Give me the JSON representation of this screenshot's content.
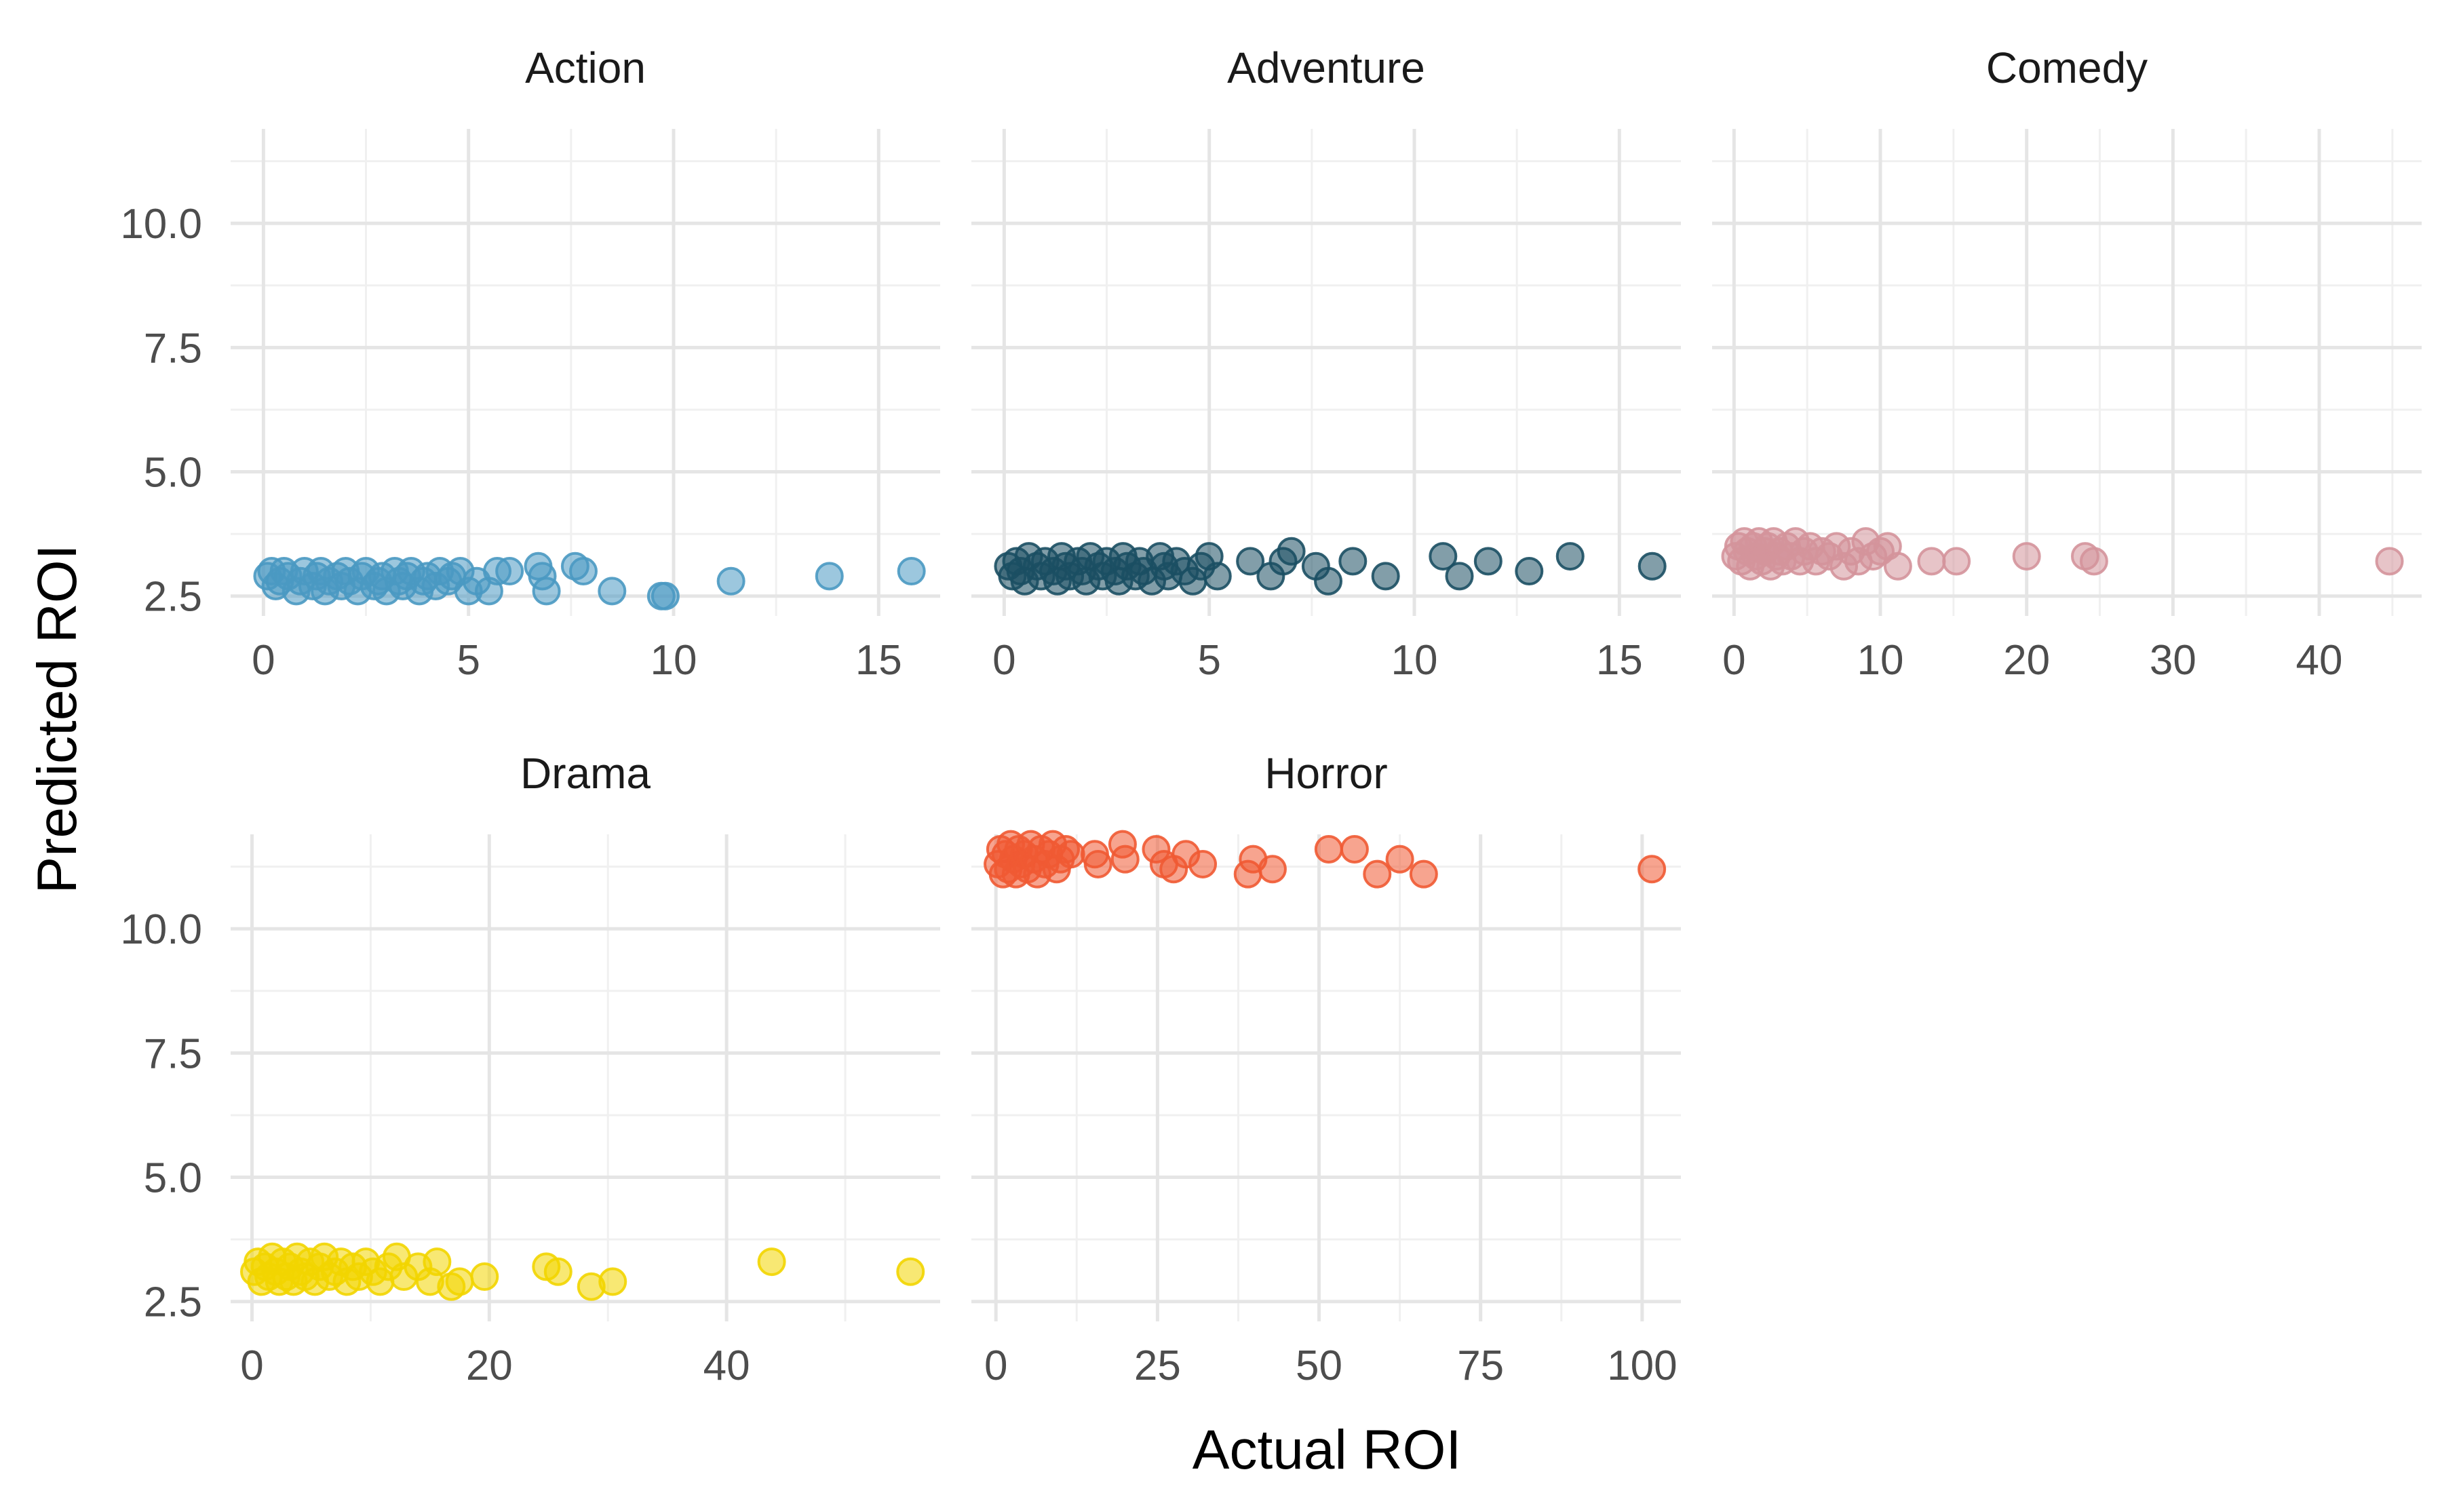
{
  "chart_data": {
    "type": "scatter",
    "xlabel": "Actual ROI",
    "ylabel": "Predicted ROI",
    "ylim": [
      2.1,
      11.9
    ],
    "y_ticks": [
      2.5,
      5.0,
      7.5,
      10.0
    ],
    "y_tick_labels": [
      "2.5",
      "5.0",
      "7.5",
      "10.0"
    ],
    "grid": true,
    "legend": "none",
    "point_opacity": 0.55,
    "panels": [
      {
        "title": "Action",
        "color": "#4A99C2",
        "xlim": [
          -0.8,
          16.5
        ],
        "x_ticks": [
          0,
          5,
          10,
          15
        ],
        "x_tick_labels": [
          "0",
          "5",
          "10",
          "15"
        ],
        "points": [
          [
            0.1,
            2.9
          ],
          [
            0.2,
            3.0
          ],
          [
            0.3,
            2.7
          ],
          [
            0.4,
            2.8
          ],
          [
            0.5,
            3.0
          ],
          [
            0.6,
            2.9
          ],
          [
            0.8,
            2.6
          ],
          [
            0.9,
            2.8
          ],
          [
            1.0,
            3.0
          ],
          [
            1.2,
            2.7
          ],
          [
            1.3,
            2.9
          ],
          [
            1.4,
            3.0
          ],
          [
            1.5,
            2.6
          ],
          [
            1.6,
            2.8
          ],
          [
            1.8,
            2.9
          ],
          [
            1.9,
            2.7
          ],
          [
            2.0,
            3.0
          ],
          [
            2.1,
            2.8
          ],
          [
            2.3,
            2.6
          ],
          [
            2.4,
            2.9
          ],
          [
            2.5,
            3.0
          ],
          [
            2.7,
            2.7
          ],
          [
            2.8,
            2.8
          ],
          [
            2.9,
            2.9
          ],
          [
            3.0,
            2.6
          ],
          [
            3.2,
            3.0
          ],
          [
            3.3,
            2.8
          ],
          [
            3.4,
            2.7
          ],
          [
            3.5,
            2.9
          ],
          [
            3.6,
            3.0
          ],
          [
            3.8,
            2.6
          ],
          [
            3.9,
            2.8
          ],
          [
            4.0,
            2.9
          ],
          [
            4.2,
            2.7
          ],
          [
            4.3,
            3.0
          ],
          [
            4.5,
            2.8
          ],
          [
            4.6,
            2.9
          ],
          [
            4.8,
            3.0
          ],
          [
            5.0,
            2.6
          ],
          [
            5.2,
            2.8
          ],
          [
            5.5,
            2.6
          ],
          [
            5.7,
            3.0
          ],
          [
            6.0,
            3.0
          ],
          [
            6.7,
            3.1
          ],
          [
            6.8,
            2.9
          ],
          [
            6.9,
            2.6
          ],
          [
            7.6,
            3.1
          ],
          [
            7.8,
            3.0
          ],
          [
            8.5,
            2.6
          ],
          [
            9.7,
            2.5
          ],
          [
            9.8,
            2.5
          ],
          [
            11.4,
            2.8
          ],
          [
            13.8,
            2.9
          ],
          [
            15.8,
            3.0
          ]
        ]
      },
      {
        "title": "Adventure",
        "color": "#1B4F63",
        "xlim": [
          -0.8,
          16.5
        ],
        "x_ticks": [
          0,
          5,
          10,
          15
        ],
        "x_tick_labels": [
          "0",
          "5",
          "10",
          "15"
        ],
        "points": [
          [
            0.1,
            3.1
          ],
          [
            0.2,
            2.9
          ],
          [
            0.3,
            3.2
          ],
          [
            0.4,
            3.0
          ],
          [
            0.5,
            2.8
          ],
          [
            0.6,
            3.3
          ],
          [
            0.8,
            3.1
          ],
          [
            0.9,
            2.9
          ],
          [
            1.0,
            3.2
          ],
          [
            1.2,
            3.0
          ],
          [
            1.3,
            2.8
          ],
          [
            1.4,
            3.3
          ],
          [
            1.5,
            3.1
          ],
          [
            1.6,
            2.9
          ],
          [
            1.8,
            3.2
          ],
          [
            1.9,
            3.0
          ],
          [
            2.0,
            2.8
          ],
          [
            2.1,
            3.3
          ],
          [
            2.3,
            3.1
          ],
          [
            2.4,
            2.9
          ],
          [
            2.5,
            3.2
          ],
          [
            2.7,
            3.0
          ],
          [
            2.8,
            2.8
          ],
          [
            2.9,
            3.3
          ],
          [
            3.0,
            3.1
          ],
          [
            3.2,
            2.9
          ],
          [
            3.3,
            3.2
          ],
          [
            3.4,
            3.0
          ],
          [
            3.6,
            2.8
          ],
          [
            3.8,
            3.3
          ],
          [
            3.9,
            3.1
          ],
          [
            4.0,
            2.9
          ],
          [
            4.2,
            3.2
          ],
          [
            4.4,
            3.0
          ],
          [
            4.6,
            2.8
          ],
          [
            4.8,
            3.1
          ],
          [
            5.0,
            3.3
          ],
          [
            5.2,
            2.9
          ],
          [
            6.0,
            3.2
          ],
          [
            6.5,
            2.9
          ],
          [
            6.8,
            3.2
          ],
          [
            7.0,
            3.4
          ],
          [
            7.6,
            3.1
          ],
          [
            7.9,
            2.8
          ],
          [
            8.5,
            3.2
          ],
          [
            9.3,
            2.9
          ],
          [
            10.7,
            3.3
          ],
          [
            11.1,
            2.9
          ],
          [
            11.8,
            3.2
          ],
          [
            12.8,
            3.0
          ],
          [
            13.8,
            3.3
          ],
          [
            15.8,
            3.1
          ]
        ]
      },
      {
        "title": "Comedy",
        "color": "#D4949B",
        "xlim": [
          -1.5,
          47.0
        ],
        "x_ticks": [
          0,
          10,
          20,
          30,
          40
        ],
        "x_tick_labels": [
          "0",
          "10",
          "20",
          "30",
          "40"
        ],
        "points": [
          [
            0.1,
            3.3
          ],
          [
            0.3,
            3.5
          ],
          [
            0.5,
            3.2
          ],
          [
            0.7,
            3.6
          ],
          [
            0.9,
            3.4
          ],
          [
            1.1,
            3.1
          ],
          [
            1.3,
            3.5
          ],
          [
            1.5,
            3.3
          ],
          [
            1.7,
            3.6
          ],
          [
            1.9,
            3.2
          ],
          [
            2.1,
            3.4
          ],
          [
            2.3,
            3.5
          ],
          [
            2.5,
            3.1
          ],
          [
            2.7,
            3.6
          ],
          [
            2.9,
            3.3
          ],
          [
            3.1,
            3.4
          ],
          [
            3.3,
            3.2
          ],
          [
            3.6,
            3.5
          ],
          [
            3.9,
            3.3
          ],
          [
            4.2,
            3.6
          ],
          [
            4.5,
            3.2
          ],
          [
            4.8,
            3.4
          ],
          [
            5.2,
            3.5
          ],
          [
            5.6,
            3.2
          ],
          [
            6.0,
            3.4
          ],
          [
            6.5,
            3.3
          ],
          [
            7.0,
            3.5
          ],
          [
            7.5,
            3.1
          ],
          [
            8.0,
            3.4
          ],
          [
            8.5,
            3.2
          ],
          [
            9.0,
            3.6
          ],
          [
            9.5,
            3.3
          ],
          [
            10.0,
            3.4
          ],
          [
            10.5,
            3.5
          ],
          [
            11.2,
            3.1
          ],
          [
            13.5,
            3.2
          ],
          [
            15.2,
            3.2
          ],
          [
            20.0,
            3.3
          ],
          [
            24.0,
            3.3
          ],
          [
            24.6,
            3.2
          ],
          [
            44.8,
            3.2
          ]
        ]
      },
      {
        "title": "Drama",
        "color": "#F2D500",
        "xlim": [
          -1.8,
          58.0
        ],
        "x_ticks": [
          0,
          20,
          40
        ],
        "x_tick_labels": [
          "0",
          "20",
          "40"
        ],
        "points": [
          [
            0.2,
            3.1
          ],
          [
            0.5,
            3.3
          ],
          [
            0.8,
            2.9
          ],
          [
            1.1,
            3.2
          ],
          [
            1.4,
            3.0
          ],
          [
            1.7,
            3.4
          ],
          [
            2.0,
            3.1
          ],
          [
            2.3,
            2.9
          ],
          [
            2.6,
            3.3
          ],
          [
            2.9,
            3.0
          ],
          [
            3.2,
            3.2
          ],
          [
            3.5,
            2.9
          ],
          [
            3.8,
            3.4
          ],
          [
            4.1,
            3.1
          ],
          [
            4.5,
            3.0
          ],
          [
            4.9,
            3.3
          ],
          [
            5.3,
            2.9
          ],
          [
            5.7,
            3.2
          ],
          [
            6.1,
            3.4
          ],
          [
            6.5,
            3.0
          ],
          [
            7.0,
            3.1
          ],
          [
            7.5,
            3.3
          ],
          [
            8.0,
            2.9
          ],
          [
            8.5,
            3.2
          ],
          [
            9.0,
            3.0
          ],
          [
            9.6,
            3.3
          ],
          [
            10.2,
            3.1
          ],
          [
            10.8,
            2.9
          ],
          [
            11.5,
            3.2
          ],
          [
            12.2,
            3.4
          ],
          [
            12.8,
            3.0
          ],
          [
            14.0,
            3.2
          ],
          [
            15.0,
            2.9
          ],
          [
            15.6,
            3.3
          ],
          [
            16.8,
            2.8
          ],
          [
            17.5,
            2.9
          ],
          [
            19.6,
            3.0
          ],
          [
            24.8,
            3.2
          ],
          [
            25.8,
            3.1
          ],
          [
            28.6,
            2.8
          ],
          [
            30.4,
            2.9
          ],
          [
            43.8,
            3.3
          ],
          [
            55.5,
            3.1
          ]
        ]
      },
      {
        "title": "Horror",
        "color": "#F05A33",
        "xlim": [
          -3.8,
          106.0
        ],
        "x_ticks": [
          0,
          25,
          50,
          75,
          100
        ],
        "x_tick_labels": [
          "0",
          "25",
          "50",
          "75",
          "100"
        ],
        "points": [
          [
            0.3,
            11.3
          ],
          [
            0.7,
            11.6
          ],
          [
            1.1,
            11.1
          ],
          [
            1.5,
            11.5
          ],
          [
            1.9,
            11.2
          ],
          [
            2.3,
            11.7
          ],
          [
            2.7,
            11.4
          ],
          [
            3.1,
            11.1
          ],
          [
            3.5,
            11.6
          ],
          [
            3.9,
            11.3
          ],
          [
            4.4,
            11.5
          ],
          [
            4.9,
            11.2
          ],
          [
            5.4,
            11.7
          ],
          [
            5.9,
            11.4
          ],
          [
            6.4,
            11.1
          ],
          [
            7.0,
            11.6
          ],
          [
            7.6,
            11.3
          ],
          [
            8.2,
            11.5
          ],
          [
            8.8,
            11.7
          ],
          [
            9.4,
            11.2
          ],
          [
            10.0,
            11.4
          ],
          [
            10.8,
            11.6
          ],
          [
            11.6,
            11.5
          ],
          [
            15.3,
            11.5
          ],
          [
            15.8,
            11.3
          ],
          [
            19.6,
            11.7
          ],
          [
            20.0,
            11.4
          ],
          [
            24.8,
            11.6
          ],
          [
            26.0,
            11.3
          ],
          [
            27.5,
            11.2
          ],
          [
            29.4,
            11.5
          ],
          [
            32.0,
            11.3
          ],
          [
            39.0,
            11.1
          ],
          [
            39.8,
            11.4
          ],
          [
            42.8,
            11.2
          ],
          [
            51.5,
            11.6
          ],
          [
            55.5,
            11.6
          ],
          [
            59.0,
            11.1
          ],
          [
            62.5,
            11.4
          ],
          [
            66.2,
            11.1
          ],
          [
            101.5,
            11.2
          ]
        ]
      }
    ]
  }
}
